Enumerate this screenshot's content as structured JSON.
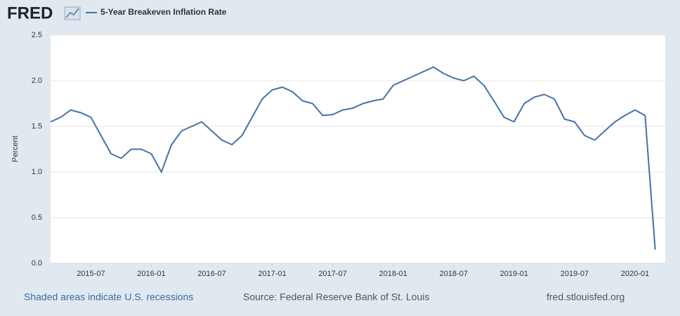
{
  "chart_data": {
    "type": "line",
    "logo": "FRED",
    "ylabel": "Percent",
    "footer_left": "Shaded areas indicate U.S. recessions",
    "footer_center": "Source: Federal Reserve Bank of St. Louis",
    "footer_right": "fred.stlouisfed.org",
    "x": [
      "2015-03",
      "2015-04",
      "2015-05",
      "2015-06",
      "2015-07",
      "2015-08",
      "2015-09",
      "2015-10",
      "2015-11",
      "2015-12",
      "2016-01",
      "2016-02",
      "2016-03",
      "2016-04",
      "2016-05",
      "2016-06",
      "2016-07",
      "2016-08",
      "2016-09",
      "2016-10",
      "2016-11",
      "2016-12",
      "2017-01",
      "2017-02",
      "2017-03",
      "2017-04",
      "2017-05",
      "2017-06",
      "2017-07",
      "2017-08",
      "2017-09",
      "2017-10",
      "2017-11",
      "2017-12",
      "2018-01",
      "2018-02",
      "2018-03",
      "2018-04",
      "2018-05",
      "2018-06",
      "2018-07",
      "2018-08",
      "2018-09",
      "2018-10",
      "2018-11",
      "2018-12",
      "2019-01",
      "2019-02",
      "2019-03",
      "2019-04",
      "2019-05",
      "2019-06",
      "2019-07",
      "2019-08",
      "2019-09",
      "2019-10",
      "2019-11",
      "2019-12",
      "2020-01",
      "2020-02",
      "2020-03"
    ],
    "series": [
      {
        "name": "5-Year Breakeven Inflation Rate",
        "color": "#4572a7",
        "values": [
          1.55,
          1.6,
          1.68,
          1.65,
          1.6,
          1.4,
          1.2,
          1.15,
          1.25,
          1.25,
          1.2,
          1.0,
          1.3,
          1.45,
          1.5,
          1.55,
          1.45,
          1.35,
          1.3,
          1.4,
          1.6,
          1.8,
          1.9,
          1.93,
          1.88,
          1.78,
          1.75,
          1.62,
          1.63,
          1.68,
          1.7,
          1.75,
          1.78,
          1.8,
          1.95,
          2.0,
          2.05,
          2.1,
          2.15,
          2.08,
          2.03,
          2.0,
          2.05,
          1.95,
          1.78,
          1.6,
          1.55,
          1.75,
          1.82,
          1.85,
          1.8,
          1.58,
          1.55,
          1.4,
          1.35,
          1.45,
          1.55,
          1.62,
          1.68,
          1.62,
          0.15
        ]
      }
    ],
    "xlim": [
      "2015-03",
      "2020-04"
    ],
    "xticks": [
      "2015-07",
      "2016-01",
      "2016-07",
      "2017-01",
      "2017-07",
      "2018-01",
      "2018-07",
      "2019-01",
      "2019-07",
      "2020-01"
    ],
    "ylim": [
      0,
      2.5
    ],
    "yticks": [
      {
        "value": 0,
        "label": "0.0"
      },
      0.5,
      {
        "value": 1,
        "label": "1.0"
      },
      1.5,
      {
        "value": 2,
        "label": "2.0"
      },
      2.5
    ],
    "grid": true
  }
}
